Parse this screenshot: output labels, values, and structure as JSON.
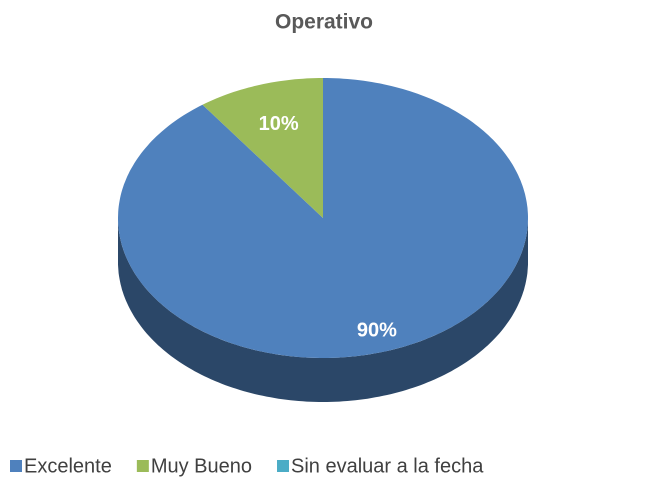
{
  "chart_data": {
    "type": "pie",
    "title": "Operativo",
    "categories": [
      "Excelente",
      "Muy Bueno",
      "Sin evaluar a la fecha"
    ],
    "values": [
      90,
      10,
      0
    ],
    "value_labels": [
      "90%",
      "10%",
      null
    ],
    "colors": [
      "#4f81bd",
      "#9bbb59",
      "#4bacc6"
    ],
    "legend": "bottom"
  }
}
